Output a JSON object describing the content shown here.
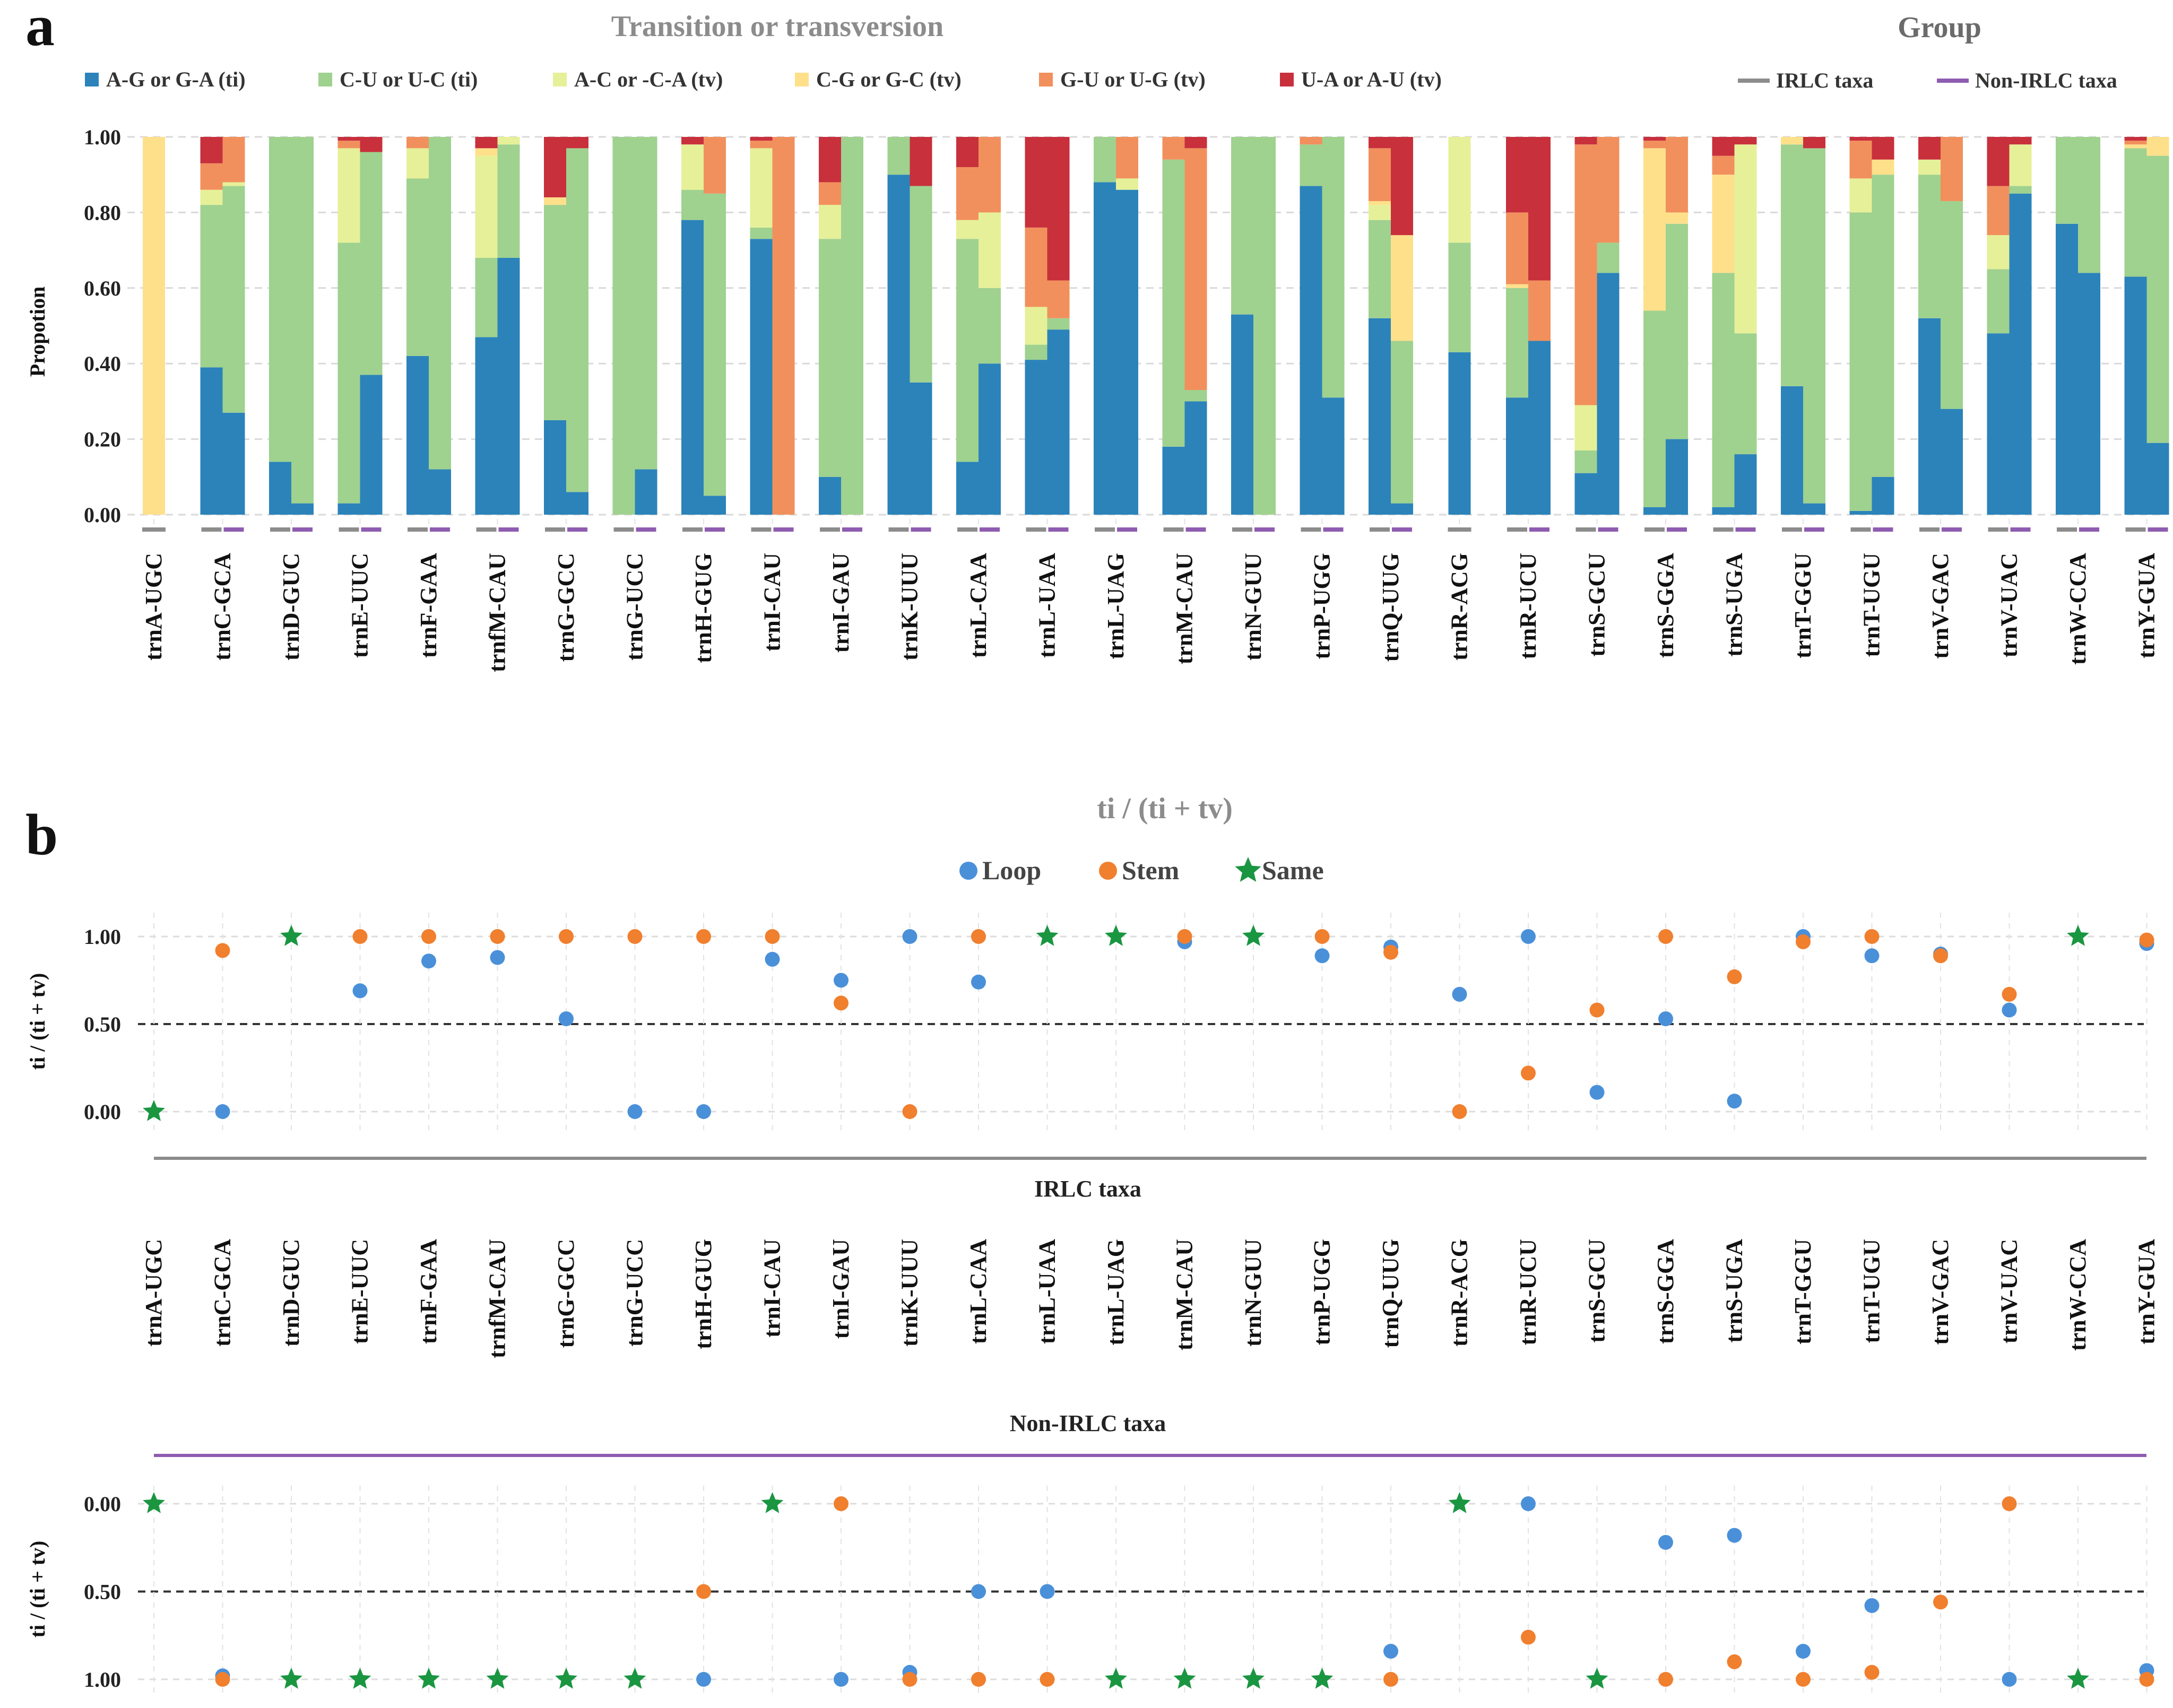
{
  "chart_data": [
    {
      "id": "a",
      "type": "bar",
      "stacked": true,
      "panel_label": "a",
      "title": "Transition or transversion",
      "legend_title": "Group",
      "ylabel": "Propotion",
      "ylim": [
        0,
        1
      ],
      "yticks": [
        "0.00",
        "0.20",
        "0.40",
        "0.60",
        "0.80",
        "1.00"
      ],
      "categories": [
        "trnA-UGC",
        "trnC-GCA",
        "trnD-GUC",
        "trnE-UUC",
        "trnF-GAA",
        "trnfM-CAU",
        "trnG-GCC",
        "trnG-UCC",
        "trnH-GUG",
        "trnI-CAU",
        "trnI-GAU",
        "trnK-UUU",
        "trnL-CAA",
        "trnL-UAA",
        "trnL-UAG",
        "trnM-CAU",
        "trnN-GUU",
        "trnP-UGG",
        "trnQ-UUG",
        "trnR-ACG",
        "trnR-UCU",
        "trnS-GCU",
        "trnS-GGA",
        "trnS-UGA",
        "trnT-GGU",
        "trnT-UGU",
        "trnV-GAC",
        "trnV-UAC",
        "trnW-CCA",
        "trnY-GUA"
      ],
      "series": [
        {
          "name": "A-G or G-A (ti)",
          "color": "#2b83ba"
        },
        {
          "name": "C-U or U-C (ti)",
          "color": "#9fd18f"
        },
        {
          "name": "A-C or -C-A (tv)",
          "color": "#e6f098"
        },
        {
          "name": "C-G or G-C (tv)",
          "color": "#fee08b"
        },
        {
          "name": "G-U or U-G (tv)",
          "color": "#f1905d"
        },
        {
          "name": "U-A or A-U (tv)",
          "color": "#c8303c"
        }
      ],
      "groups": [
        {
          "name": "IRLC taxa",
          "color": "#8c8c8c"
        },
        {
          "name": "Non-IRLC taxa",
          "color": "#8e5cb0"
        }
      ],
      "irlc": [
        [
          0,
          0,
          0,
          1,
          0,
          0
        ],
        [
          0.39,
          0.43,
          0.04,
          0,
          0.07,
          0.07
        ],
        [
          0.14,
          0.86,
          0,
          0,
          0,
          0
        ],
        [
          0.03,
          0.69,
          0.25,
          0,
          0.02,
          0.01
        ],
        [
          0.42,
          0.47,
          0.08,
          0,
          0.03,
          0
        ],
        [
          0.47,
          0.21,
          0.27,
          0.02,
          0,
          0.03
        ],
        [
          0.25,
          0.57,
          0,
          0.02,
          0,
          0.16
        ],
        [
          0,
          1,
          0,
          0,
          0,
          0
        ],
        [
          0.78,
          0.08,
          0.12,
          0,
          0,
          0.02
        ],
        [
          0.73,
          0.03,
          0.21,
          0,
          0.02,
          0.01
        ],
        [
          0.1,
          0.63,
          0.09,
          0,
          0.06,
          0.12
        ],
        [
          0.9,
          0.1,
          0,
          0,
          0,
          0
        ],
        [
          0.14,
          0.59,
          0.05,
          0,
          0.14,
          0.08
        ],
        [
          0.41,
          0.04,
          0.1,
          0,
          0.21,
          0.24
        ],
        [
          0.88,
          0.12,
          0,
          0,
          0,
          0
        ],
        [
          0.18,
          0.76,
          0,
          0,
          0.06,
          0
        ],
        [
          0.53,
          0.47,
          0,
          0,
          0,
          0
        ],
        [
          0.87,
          0.11,
          0,
          0,
          0.02,
          0
        ],
        [
          0.52,
          0.26,
          0.04,
          0.01,
          0.14,
          0.03
        ],
        [
          0.43,
          0.29,
          0.28,
          0,
          0,
          0
        ],
        [
          0.31,
          0.29,
          0,
          0.01,
          0.19,
          0.2
        ],
        [
          0.11,
          0.06,
          0.12,
          0,
          0.69,
          0.02
        ],
        [
          0.02,
          0.52,
          0,
          0.43,
          0.02,
          0.01
        ],
        [
          0.02,
          0.62,
          0,
          0.26,
          0.05,
          0.05
        ],
        [
          0.34,
          0.64,
          0,
          0.02,
          0,
          0
        ],
        [
          0.01,
          0.79,
          0.09,
          0,
          0.1,
          0.01
        ],
        [
          0.52,
          0.38,
          0.04,
          0,
          0,
          0.06
        ],
        [
          0.48,
          0.17,
          0.09,
          0,
          0.13,
          0.13
        ],
        [
          0.77,
          0.23,
          0,
          0,
          0,
          0
        ],
        [
          0.63,
          0.34,
          0,
          0.01,
          0.01,
          0.01
        ]
      ],
      "non_irlc": [
        null,
        [
          0.27,
          0.6,
          0.01,
          0,
          0.12,
          0
        ],
        [
          0.03,
          0.97,
          0,
          0,
          0,
          0
        ],
        [
          0.37,
          0.59,
          0,
          0,
          0,
          0.04
        ],
        [
          0.12,
          0.88,
          0,
          0,
          0,
          0
        ],
        [
          0.68,
          0.3,
          0.02,
          0,
          0,
          0
        ],
        [
          0.06,
          0.91,
          0,
          0,
          0,
          0.03
        ],
        [
          0.12,
          0.88,
          0,
          0,
          0,
          0
        ],
        [
          0.05,
          0.8,
          0,
          0,
          0.15,
          0
        ],
        [
          0,
          0,
          0,
          0,
          1,
          0
        ],
        [
          0,
          1,
          0,
          0,
          0,
          0
        ],
        [
          0.35,
          0.52,
          0,
          0,
          0,
          0.13
        ],
        [
          0.4,
          0.2,
          0.2,
          0,
          0.2,
          0
        ],
        [
          0.49,
          0.03,
          0,
          0,
          0.1,
          0.38
        ],
        [
          0.86,
          0,
          0.03,
          0,
          0.11,
          0
        ],
        [
          0.3,
          0.03,
          0,
          0,
          0.64,
          0.03
        ],
        [
          0,
          1,
          0,
          0,
          0,
          0
        ],
        [
          0.31,
          0.69,
          0,
          0,
          0,
          0
        ],
        [
          0.03,
          0.43,
          0,
          0.28,
          0,
          0.26
        ],
        null,
        [
          0.46,
          0,
          0,
          0,
          0.16,
          0.38
        ],
        [
          0.64,
          0.08,
          0,
          0,
          0.28,
          0
        ],
        [
          0.2,
          0.57,
          0,
          0.03,
          0.2,
          0
        ],
        [
          0.16,
          0.32,
          0.5,
          0,
          0,
          0.02
        ],
        [
          0.03,
          0.94,
          0,
          0,
          0,
          0.03
        ],
        [
          0.1,
          0.8,
          0,
          0.04,
          0,
          0.06
        ],
        [
          0.28,
          0.55,
          0,
          0,
          0.17,
          0
        ],
        [
          0.85,
          0.02,
          0.11,
          0,
          0,
          0.02
        ],
        [
          0.64,
          0.36,
          0,
          0,
          0,
          0
        ],
        [
          0.19,
          0.76,
          0,
          0.05,
          0,
          0
        ]
      ]
    },
    {
      "id": "b",
      "type": "scatter",
      "panel_label": "b",
      "title": "ti / (ti + tv)",
      "ylabel": "ti / (ti + tv)",
      "ylim": [
        0,
        1
      ],
      "yticks": [
        "0.00",
        "0.50",
        "1.00"
      ],
      "reference_line": 0.5,
      "legend": [
        {
          "name": "Loop",
          "color": "#4a90d9",
          "marker": "circle"
        },
        {
          "name": "Stem",
          "color": "#f07f2e",
          "marker": "circle"
        },
        {
          "name": "Same",
          "color": "#1a9641",
          "marker": "star"
        }
      ],
      "categories": [
        "trnA-UGC",
        "trnC-GCA",
        "trnD-GUC",
        "trnE-UUC",
        "trnF-GAA",
        "trnfM-CAU",
        "trnG-GCC",
        "trnG-UCC",
        "trnH-GUG",
        "trnI-CAU",
        "trnI-GAU",
        "trnK-UUU",
        "trnL-CAA",
        "trnL-UAA",
        "trnL-UAG",
        "trnM-CAU",
        "trnN-GUU",
        "trnP-UGG",
        "trnQ-UUG",
        "trnR-ACG",
        "trnR-UCU",
        "trnS-GCU",
        "trnS-GGA",
        "trnS-UGA",
        "trnT-GGU",
        "trnT-UGU",
        "trnV-GAC",
        "trnV-UAC",
        "trnW-CCA",
        "trnY-GUA"
      ],
      "irlc": {
        "group_label": "IRLC taxa",
        "loop": [
          null,
          0,
          null,
          0.69,
          0.86,
          0.88,
          0.53,
          0,
          0,
          0.87,
          0.75,
          1.0,
          0.74,
          null,
          null,
          0.97,
          null,
          0.89,
          0.94,
          0.67,
          1.0,
          0.11,
          0.53,
          0.06,
          1.0,
          0.89,
          0.9,
          0.58,
          null,
          0.96
        ],
        "stem": [
          null,
          0.92,
          null,
          1.0,
          1.0,
          1.0,
          1.0,
          1.0,
          1.0,
          1.0,
          0.62,
          0,
          1.0,
          null,
          null,
          1.0,
          null,
          1.0,
          0.91,
          0,
          0.22,
          0.58,
          1.0,
          0.77,
          0.97,
          1.0,
          0.89,
          0.67,
          null,
          0.98
        ],
        "same": [
          0,
          null,
          1.0,
          null,
          null,
          null,
          null,
          null,
          null,
          null,
          null,
          null,
          null,
          1.0,
          1.0,
          null,
          1.0,
          null,
          null,
          null,
          null,
          null,
          null,
          null,
          null,
          null,
          null,
          null,
          1.0,
          null
        ]
      },
      "non_irlc": {
        "group_label": "Non-IRLC taxa",
        "y_inverted": true,
        "loop": [
          null,
          0.98,
          null,
          null,
          null,
          null,
          null,
          null,
          1.0,
          null,
          1.0,
          0.96,
          0.5,
          0.5,
          null,
          null,
          null,
          null,
          0.84,
          null,
          0,
          null,
          0.22,
          0.18,
          0.84,
          0.58,
          null,
          1.0,
          null,
          0.95
        ],
        "stem": [
          null,
          1.0,
          null,
          null,
          null,
          null,
          null,
          null,
          0.5,
          null,
          0,
          1.0,
          1.0,
          1.0,
          null,
          null,
          null,
          null,
          1.0,
          null,
          0.76,
          null,
          1.0,
          0.9,
          1.0,
          0.96,
          0.56,
          0,
          null,
          1.0
        ],
        "same": [
          0,
          null,
          1.0,
          1.0,
          1.0,
          1.0,
          1.0,
          1.0,
          null,
          0,
          null,
          null,
          null,
          null,
          1.0,
          1.0,
          1.0,
          1.0,
          null,
          0,
          null,
          1.0,
          null,
          null,
          null,
          null,
          null,
          null,
          1.0,
          null
        ]
      }
    }
  ]
}
